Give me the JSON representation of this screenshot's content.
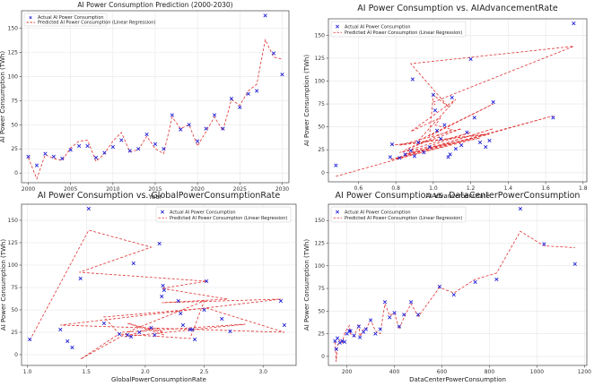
{
  "legend": {
    "actual_label": "Actual AI Power Consumption",
    "predicted_label": "Predicted AI Power Consumption (Linear Regression)"
  },
  "colors": {
    "actual": "#1f1fd8",
    "predicted": "#e03030",
    "grid": "#e6e6e6",
    "axis": "#444444"
  },
  "chart_data": [
    {
      "id": "p1",
      "type": "line",
      "title": "AI Power Consumption Prediction (2000-2030)",
      "xlabel": "Year",
      "ylabel": "AI Power Consumption (TWh)",
      "xlim": [
        1999.2,
        2030.8
      ],
      "ylim": [
        -10,
        168
      ],
      "xticks": [
        2000,
        2005,
        2010,
        2015,
        2020,
        2025,
        2030
      ],
      "yticks": [
        0,
        25,
        50,
        75,
        100,
        125,
        150
      ],
      "grid": true,
      "legend_placement": "top-left",
      "legend_size": "small",
      "actual": {
        "x": [
          2000,
          2001,
          2002,
          2003,
          2004,
          2005,
          2006,
          2007,
          2008,
          2009,
          2010,
          2011,
          2012,
          2013,
          2014,
          2015,
          2016,
          2017,
          2018,
          2019,
          2020,
          2021,
          2022,
          2023,
          2024,
          2025,
          2026,
          2027,
          2028,
          2029,
          2030
        ],
        "y": [
          17,
          8,
          20,
          17,
          15,
          24,
          28,
          28,
          16,
          21,
          27,
          34,
          23,
          25,
          40,
          30,
          25,
          60,
          45,
          50,
          33,
          46,
          60,
          46,
          77,
          68,
          82,
          85,
          163,
          124,
          102
        ]
      },
      "predicted": {
        "x": [
          2000,
          2001,
          2002,
          2003,
          2004,
          2005,
          2006,
          2007,
          2008,
          2009,
          2010,
          2011,
          2012,
          2013,
          2014,
          2015,
          2016,
          2017,
          2018,
          2019,
          2020,
          2021,
          2022,
          2023,
          2024,
          2025,
          2026,
          2027,
          2028,
          2029,
          2030
        ],
        "y": [
          16,
          -6,
          19,
          15,
          13,
          26,
          33,
          34,
          12,
          20,
          33,
          42,
          22,
          24,
          38,
          25,
          20,
          58,
          46,
          50,
          28,
          43,
          58,
          44,
          76,
          70,
          85,
          92,
          138,
          120,
          118
        ]
      }
    },
    {
      "id": "p2",
      "type": "scatter",
      "title": "AI Power Consumption vs. AIAdvancementRate",
      "xlabel": "AIAdvancementRate",
      "ylabel": "AI Power Consumption (TWh)",
      "xlim": [
        0.44,
        1.82
      ],
      "ylim": [
        -10,
        168
      ],
      "xticks": [
        0.6,
        0.8,
        1.0,
        1.2,
        1.4,
        1.6,
        1.8
      ],
      "yticks": [
        0,
        25,
        50,
        75,
        100,
        125,
        150
      ],
      "grid": true,
      "legend_placement": "top-left",
      "legend_size": "large",
      "actual": {
        "x": [
          0.48,
          0.77,
          0.78,
          0.82,
          0.85,
          0.88,
          0.89,
          0.9,
          0.92,
          0.95,
          0.98,
          1.0,
          1.01,
          1.02,
          1.04,
          1.06,
          1.08,
          1.09,
          1.1,
          1.12,
          1.15,
          1.18,
          1.2,
          1.22,
          1.25,
          1.28,
          1.3,
          1.32,
          1.64,
          1.75
        ],
        "y": [
          8,
          17,
          31,
          16,
          20,
          24,
          102,
          18,
          33,
          22,
          28,
          85,
          68,
          46,
          37,
          52,
          17,
          20,
          82,
          26,
          30,
          44,
          124,
          60,
          33,
          28,
          35,
          77,
          60,
          163
        ]
      },
      "predicted": {
        "x": [
          0.48,
          1.64,
          0.77,
          1.32,
          0.8,
          1.25,
          0.82,
          1.2,
          0.85,
          1.3,
          0.78,
          1.28,
          0.82,
          1.15,
          0.85,
          1.1,
          1.01,
          1.04,
          0.88,
          1.12,
          0.92,
          1.32,
          0.98,
          1.0,
          1.08,
          0.88,
          1.75,
          1.0,
          1.01
        ],
        "y": [
          -4,
          62,
          14,
          48,
          15,
          38,
          22,
          44,
          20,
          42,
          30,
          42,
          30,
          48,
          25,
          47,
          52,
          60,
          45,
          80,
          35,
          75,
          40,
          85,
          72,
          119,
          138,
          77,
          74
        ]
      }
    },
    {
      "id": "p3",
      "type": "scatter",
      "title": "AI Power Consumption vs. GlobalPowerConsumptionRate",
      "xlabel": "GlobalPowerConsumptionRate",
      "ylabel": "AI Power Consumption (TWh)",
      "xlim": [
        0.95,
        3.28
      ],
      "ylim": [
        -12,
        168
      ],
      "xticks": [
        1.0,
        1.5,
        2.0,
        2.5,
        3.0
      ],
      "yticks": [
        0,
        25,
        50,
        75,
        100,
        125,
        150
      ],
      "grid": true,
      "legend_placement": "top-right",
      "legend_size": "large",
      "actual": {
        "x": [
          1.02,
          1.28,
          1.34,
          1.38,
          1.45,
          1.52,
          1.65,
          1.78,
          1.85,
          1.88,
          1.9,
          1.95,
          2.05,
          2.08,
          2.12,
          2.14,
          2.15,
          2.16,
          2.28,
          2.3,
          2.32,
          2.38,
          2.4,
          2.42,
          2.5,
          2.52,
          2.65,
          2.72,
          3.18,
          3.15
        ],
        "y": [
          17,
          28,
          15,
          8,
          85,
          163,
          35,
          23,
          22,
          20,
          102,
          25,
          30,
          22,
          124,
          65,
          77,
          72,
          60,
          46,
          33,
          28,
          28,
          17,
          50,
          82,
          40,
          26,
          33,
          60
        ]
      },
      "predicted": {
        "x": [
          1.02,
          1.52,
          2.05,
          1.44,
          2.52,
          2.14,
          2.7,
          2.14,
          3.15,
          1.28,
          3.18,
          2.52,
          1.65,
          1.78,
          2.16,
          2.38,
          2.5,
          1.9,
          1.45,
          1.8,
          2.85,
          1.82,
          2.08,
          2.12,
          2.15,
          1.85,
          2.16
        ],
        "y": [
          16,
          139,
          120,
          92,
          82,
          74,
          62,
          58,
          62,
          33,
          25,
          52,
          42,
          23,
          20,
          18,
          60,
          28,
          -5,
          25,
          34,
          20,
          30,
          28,
          25,
          35,
          22
        ]
      }
    },
    {
      "id": "p4",
      "type": "line",
      "title": "AI Power Consumption vs. DataCenterPowerConsumption",
      "xlabel": "DataCenterPowerConsumption",
      "ylabel": "AI Power Consumption (TWh)",
      "xlim": [
        122,
        1210
      ],
      "ylim": [
        -10,
        168
      ],
      "xticks": [
        200,
        400,
        600,
        800,
        1000,
        1200
      ],
      "yticks": [
        0,
        25,
        50,
        75,
        100,
        125,
        150
      ],
      "grid": true,
      "legend_placement": "top-left",
      "legend_size": "large",
      "actual": {
        "x": [
          150,
          155,
          160,
          170,
          180,
          190,
          200,
          210,
          215,
          230,
          250,
          255,
          270,
          280,
          300,
          320,
          340,
          360,
          380,
          400,
          420,
          440,
          470,
          500,
          590,
          650,
          740,
          830,
          930,
          1030,
          1160
        ],
        "y": [
          17,
          8,
          20,
          15,
          17,
          16,
          25,
          28,
          28,
          23,
          33,
          21,
          27,
          30,
          40,
          25,
          30,
          60,
          43,
          48,
          33,
          46,
          60,
          46,
          77,
          68,
          82,
          85,
          163,
          124,
          102
        ]
      },
      "predicted": {
        "x": [
          150,
          155,
          160,
          170,
          180,
          190,
          200,
          210,
          215,
          230,
          250,
          255,
          270,
          280,
          300,
          320,
          340,
          360,
          380,
          400,
          420,
          440,
          470,
          500,
          590,
          650,
          740,
          830,
          930,
          1030,
          1160
        ],
        "y": [
          16,
          -6,
          12,
          18,
          15,
          25,
          30,
          34,
          25,
          22,
          35,
          22,
          30,
          30,
          40,
          28,
          25,
          58,
          45,
          48,
          30,
          43,
          58,
          44,
          76,
          70,
          85,
          92,
          138,
          122,
          120
        ]
      }
    }
  ]
}
